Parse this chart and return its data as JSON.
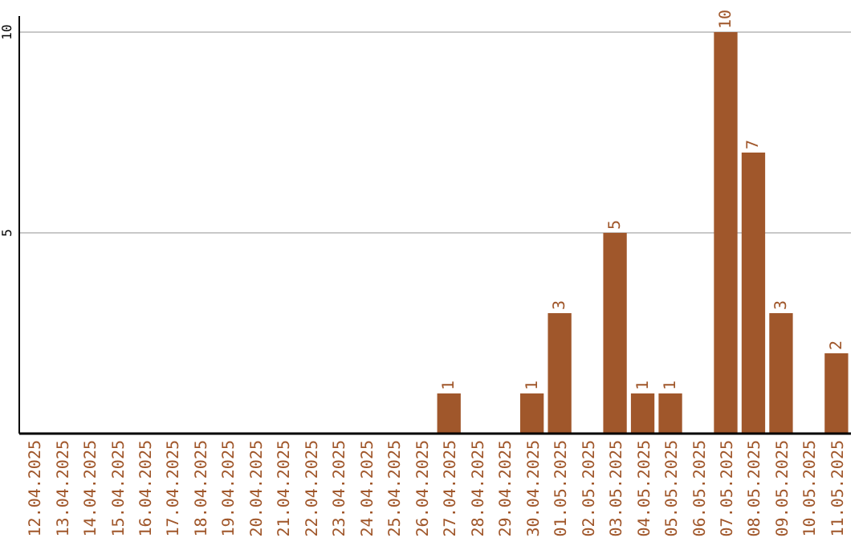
{
  "chart_data": {
    "type": "bar",
    "categories": [
      "12.04.2025",
      "13.04.2025",
      "14.04.2025",
      "15.04.2025",
      "16.04.2025",
      "17.04.2025",
      "18.04.2025",
      "19.04.2025",
      "20.04.2025",
      "21.04.2025",
      "22.04.2025",
      "23.04.2025",
      "24.04.2025",
      "25.04.2025",
      "26.04.2025",
      "27.04.2025",
      "28.04.2025",
      "29.04.2025",
      "30.04.2025",
      "01.05.2025",
      "02.05.2025",
      "03.05.2025",
      "04.05.2025",
      "05.05.2025",
      "06.05.2025",
      "07.05.2025",
      "08.05.2025",
      "09.05.2025",
      "10.05.2025",
      "11.05.2025"
    ],
    "values": [
      0,
      0,
      0,
      0,
      0,
      0,
      0,
      0,
      0,
      0,
      0,
      0,
      0,
      0,
      0,
      1,
      0,
      0,
      1,
      3,
      0,
      5,
      1,
      1,
      0,
      10,
      7,
      3,
      0,
      2
    ],
    "value_labels": [
      null,
      null,
      null,
      null,
      null,
      null,
      null,
      null,
      null,
      null,
      null,
      null,
      null,
      null,
      null,
      "1",
      null,
      null,
      "1",
      "3",
      null,
      "5",
      "1",
      "1",
      null,
      "10",
      "7",
      "3",
      null,
      "2"
    ],
    "color": "#a0572b",
    "ylim": [
      0,
      10.4
    ],
    "yticks": [
      5,
      10
    ],
    "grid": "y"
  }
}
